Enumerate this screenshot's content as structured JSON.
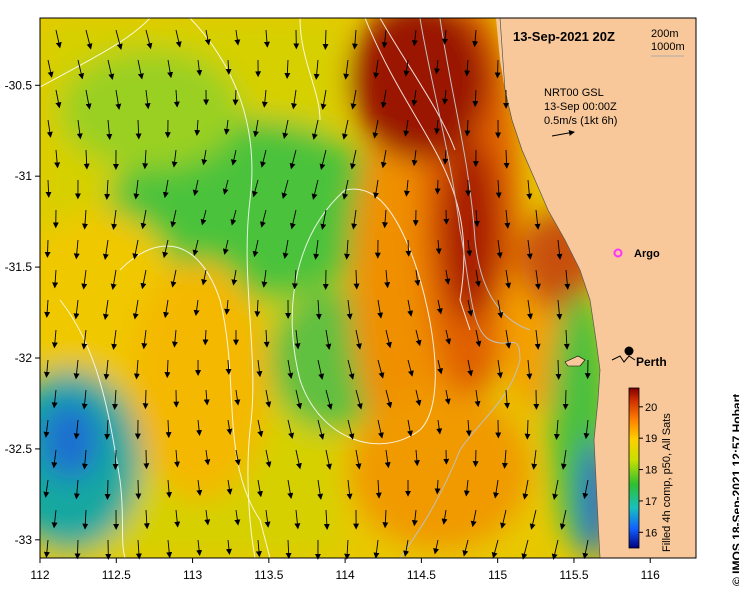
{
  "header": {
    "datetime": "13-Sep-2021 20Z",
    "depth_contours": [
      "200m",
      "1000m"
    ]
  },
  "legend": {
    "model_label": "NRT00 GSL",
    "model_time": "13-Sep 00:00Z",
    "scale_arrow_label": "0.5m/s (1kt 6h)"
  },
  "markers": {
    "argo": "Argo",
    "city": "Perth"
  },
  "colorbar": {
    "caption": "Filled 4h comp, p50, All Sats",
    "ticks": [
      "16",
      "17",
      "18",
      "19",
      "20"
    ],
    "min": 15.5,
    "max": 20.6
  },
  "credit": "© IMOS 18-Sep-2021 12:57 Hobart",
  "axes": {
    "x_ticks": [
      "112",
      "112.5",
      "113",
      "113.5",
      "114",
      "114.5",
      "115",
      "115.5",
      "116"
    ],
    "y_ticks": [
      "-30.5",
      "-31",
      "-31.5",
      "-32",
      "-32.5",
      "-33"
    ],
    "x_range": [
      112,
      116.3
    ],
    "y_range": [
      -33.1,
      -30.13
    ]
  },
  "colors": {
    "land": "#f8c89a",
    "warm": "#8b0a00",
    "cool": "#1e6fd0",
    "argo": "#ff33ff"
  }
}
